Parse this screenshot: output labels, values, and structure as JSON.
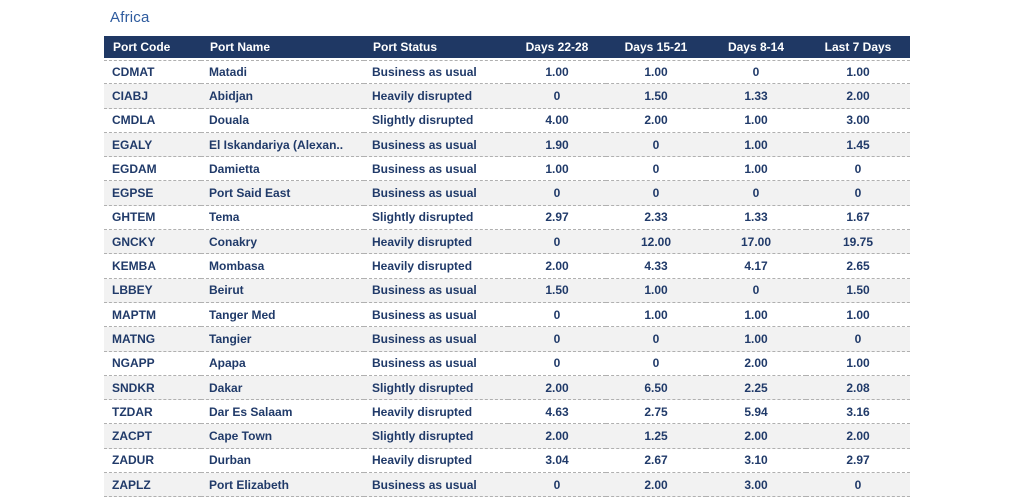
{
  "title": "Africa",
  "colors": {
    "header_bg": "#1f3864",
    "header_text": "#ffffff",
    "body_text": "#203a69",
    "alt_row_bg": "#f2f2f2",
    "row_separator": "#b0b0b0",
    "title_color": "#2e5b9e"
  },
  "chart_data": {
    "type": "table",
    "title": "Africa",
    "columns": [
      "Port Code",
      "Port Name",
      "Port Status",
      "Days 22-28",
      "Days 15-21",
      "Days 8-14",
      "Last 7 Days"
    ],
    "rows": [
      [
        "CDMAT",
        "Matadi",
        "Business as usual",
        "1.00",
        "1.00",
        "0",
        "1.00"
      ],
      [
        "CIABJ",
        "Abidjan",
        "Heavily disrupted",
        "0",
        "1.50",
        "1.33",
        "2.00"
      ],
      [
        "CMDLA",
        "Douala",
        "Slightly disrupted",
        "4.00",
        "2.00",
        "1.00",
        "3.00"
      ],
      [
        "EGALY",
        "El Iskandariya (Alexan..",
        "Business as usual",
        "1.90",
        "0",
        "1.00",
        "1.45"
      ],
      [
        "EGDAM",
        "Damietta",
        "Business as usual",
        "1.00",
        "0",
        "1.00",
        "0"
      ],
      [
        "EGPSE",
        "Port Said East",
        "Business as usual",
        "0",
        "0",
        "0",
        "0"
      ],
      [
        "GHTEM",
        "Tema",
        "Slightly disrupted",
        "2.97",
        "2.33",
        "1.33",
        "1.67"
      ],
      [
        "GNCKY",
        "Conakry",
        "Heavily disrupted",
        "0",
        "12.00",
        "17.00",
        "19.75"
      ],
      [
        "KEMBA",
        "Mombasa",
        "Heavily disrupted",
        "2.00",
        "4.33",
        "4.17",
        "2.65"
      ],
      [
        "LBBEY",
        "Beirut",
        "Business as usual",
        "1.50",
        "1.00",
        "0",
        "1.50"
      ],
      [
        "MAPTM",
        "Tanger Med",
        "Business as usual",
        "0",
        "1.00",
        "1.00",
        "1.00"
      ],
      [
        "MATNG",
        "Tangier",
        "Business as usual",
        "0",
        "0",
        "1.00",
        "0"
      ],
      [
        "NGAPP",
        "Apapa",
        "Business as usual",
        "0",
        "0",
        "2.00",
        "1.00"
      ],
      [
        "SNDKR",
        "Dakar",
        "Slightly disrupted",
        "2.00",
        "6.50",
        "2.25",
        "2.08"
      ],
      [
        "TZDAR",
        "Dar Es Salaam",
        "Heavily disrupted",
        "4.63",
        "2.75",
        "5.94",
        "3.16"
      ],
      [
        "ZACPT",
        "Cape Town",
        "Slightly disrupted",
        "2.00",
        "1.25",
        "2.00",
        "2.00"
      ],
      [
        "ZADUR",
        "Durban",
        "Heavily disrupted",
        "3.04",
        "2.67",
        "3.10",
        "2.97"
      ],
      [
        "ZAPLZ",
        "Port Elizabeth",
        "Business as usual",
        "0",
        "2.00",
        "3.00",
        "0"
      ]
    ]
  }
}
